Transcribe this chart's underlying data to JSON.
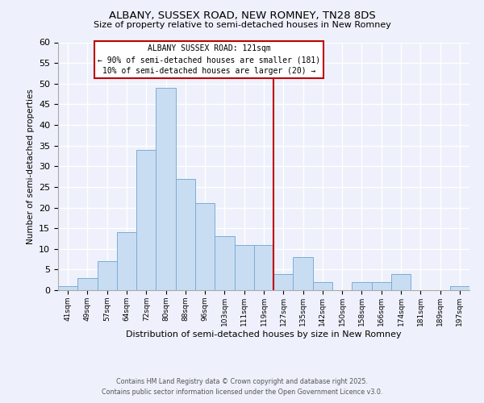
{
  "title": "ALBANY, SUSSEX ROAD, NEW ROMNEY, TN28 8DS",
  "subtitle": "Size of property relative to semi-detached houses in New Romney",
  "xlabel": "Distribution of semi-detached houses by size in New Romney",
  "ylabel": "Number of semi-detached properties",
  "bin_labels": [
    "41sqm",
    "49sqm",
    "57sqm",
    "64sqm",
    "72sqm",
    "80sqm",
    "88sqm",
    "96sqm",
    "103sqm",
    "111sqm",
    "119sqm",
    "127sqm",
    "135sqm",
    "142sqm",
    "150sqm",
    "158sqm",
    "166sqm",
    "174sqm",
    "181sqm",
    "189sqm",
    "197sqm"
  ],
  "bar_heights": [
    1,
    3,
    7,
    14,
    34,
    49,
    27,
    21,
    13,
    11,
    11,
    4,
    8,
    2,
    0,
    2,
    2,
    4,
    0,
    0,
    1
  ],
  "bar_color": "#c9ddf2",
  "bar_edge_color": "#7aadd4",
  "marker_line_index": 10.5,
  "marker_label": "ALBANY SUSSEX ROAD: 121sqm",
  "marker_line1": "← 90% of semi-detached houses are smaller (181)",
  "marker_line2": "10% of semi-detached houses are larger (20) →",
  "marker_color": "#c00000",
  "ylim": [
    0,
    60
  ],
  "yticks": [
    0,
    5,
    10,
    15,
    20,
    25,
    30,
    35,
    40,
    45,
    50,
    55,
    60
  ],
  "background_color": "#eef1fb",
  "grid_color": "#ffffff",
  "footnote1": "Contains HM Land Registry data © Crown copyright and database right 2025.",
  "footnote2": "Contains public sector information licensed under the Open Government Licence v3.0."
}
